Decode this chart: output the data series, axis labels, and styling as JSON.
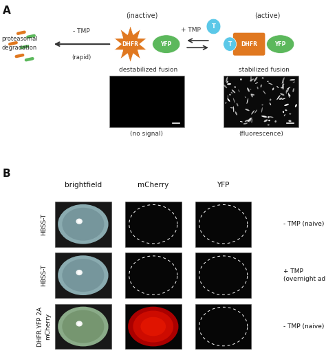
{
  "fig_width": 4.74,
  "fig_height": 5.13,
  "bg_color": "#ffffff",
  "panel_A_label": "A",
  "panel_B_label": "B",
  "inactive_label": "(inactive)",
  "active_label": "(active)",
  "destabilized_label": "destabilized fusion",
  "stabilized_label": "stabilized fusion",
  "no_signal_label": "(no signal)",
  "fluorescence_label": "(fluorescence)",
  "proteasomal_line1": "proteasomal",
  "proteasomal_line2": "degradation",
  "rapid_label": "(rapid)",
  "minus_tmp_label": "- TMP",
  "plus_tmp_label": "+ TMP",
  "dhfr_color": "#e07820",
  "yfp_color": "#5cb85c",
  "tmp_color": "#5bc8e8",
  "arrow_color": "#333333",
  "col_headers": [
    "brightfield",
    "mCherry",
    "YFP"
  ],
  "row_labels": [
    "HBSS-T",
    "HBSS-T",
    "DHFR.YFP 2A\nmCherry"
  ],
  "row_annotations": [
    "- TMP (naive)",
    "+ TMP\n(overnight admin.)",
    "- TMP (naive)"
  ]
}
